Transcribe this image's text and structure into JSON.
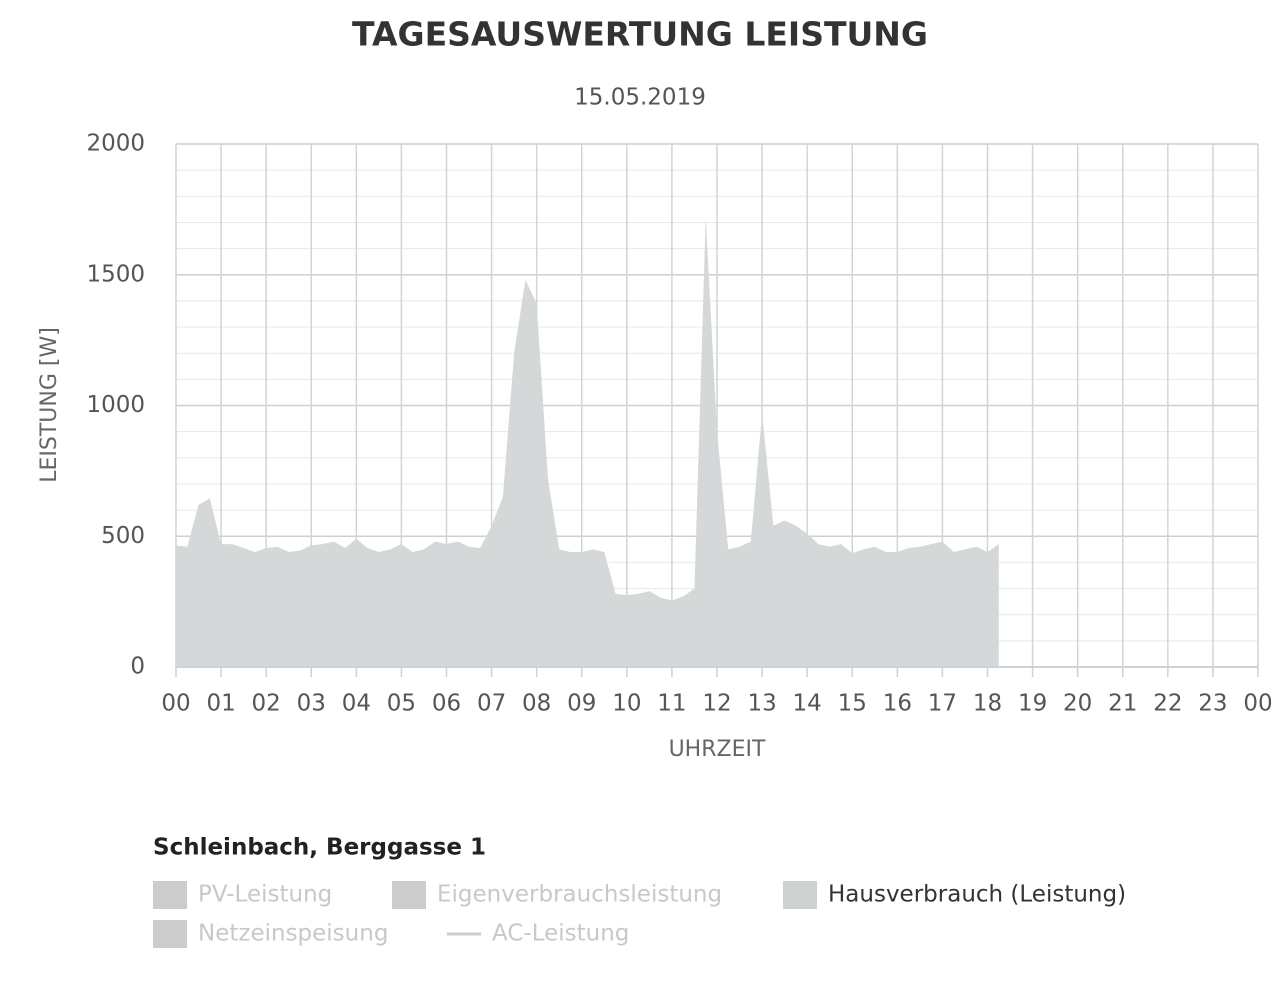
{
  "chart_data": {
    "type": "area",
    "title": "TAGESAUSWERTUNG LEISTUNG",
    "subtitle": "15.05.2019",
    "x_label": "UHRZEIT",
    "y_label": "LEISTUNG [W]",
    "legend_title": "Schleinbach, Berggasse 1",
    "x": [
      0,
      0.25,
      0.5,
      0.75,
      1,
      1.25,
      1.5,
      1.75,
      2,
      2.25,
      2.5,
      2.75,
      3,
      3.25,
      3.5,
      3.75,
      4,
      4.25,
      4.5,
      4.75,
      5,
      5.25,
      5.5,
      5.75,
      6,
      6.25,
      6.5,
      6.75,
      7,
      7.25,
      7.5,
      7.75,
      8,
      8.25,
      8.5,
      8.75,
      9,
      9.25,
      9.5,
      9.75,
      10,
      10.25,
      10.5,
      10.75,
      11,
      11.25,
      11.5,
      11.75,
      12,
      12.25,
      12.5,
      12.75,
      13,
      13.25,
      13.5,
      13.75,
      14,
      14.25,
      14.5,
      14.75,
      15,
      15.25,
      15.5,
      15.75,
      16,
      16.25,
      16.5,
      16.75,
      17,
      17.25,
      17.5,
      17.75,
      18,
      18.25
    ],
    "series": [
      {
        "name": "PV-Leistung",
        "color": "#cccccc",
        "symbol": "area",
        "visible": false
      },
      {
        "name": "Eigenverbrauchsleistung",
        "color": "#cccccc",
        "symbol": "area",
        "visible": false
      },
      {
        "name": "Hausverbrauch (Leistung)",
        "color": "#d5d8d9",
        "symbol": "area",
        "visible": true,
        "values": [
          465,
          460,
          620,
          645,
          470,
          470,
          455,
          440,
          455,
          460,
          440,
          445,
          465,
          470,
          480,
          455,
          490,
          455,
          440,
          450,
          470,
          440,
          450,
          480,
          470,
          480,
          460,
          455,
          540,
          650,
          1200,
          1480,
          1390,
          720,
          450,
          440,
          440,
          450,
          440,
          280,
          275,
          280,
          290,
          265,
          255,
          270,
          300,
          1720,
          900,
          450,
          460,
          480,
          970,
          540,
          560,
          540,
          510,
          470,
          460,
          470,
          435,
          450,
          460,
          440,
          440,
          455,
          460,
          470,
          480,
          440,
          450,
          460,
          440,
          470
        ]
      },
      {
        "name": "Netzeinspeisung",
        "color": "#cccccc",
        "symbol": "area",
        "visible": false
      },
      {
        "name": "AC-Leistung",
        "color": "#cccccc",
        "symbol": "line",
        "visible": false
      }
    ],
    "xlim": [
      0,
      24
    ],
    "xticks": [
      {
        "value": 0,
        "label": "00"
      },
      {
        "value": 1,
        "label": "01"
      },
      {
        "value": 2,
        "label": "02"
      },
      {
        "value": 3,
        "label": "03"
      },
      {
        "value": 4,
        "label": "04"
      },
      {
        "value": 5,
        "label": "05"
      },
      {
        "value": 6,
        "label": "06"
      },
      {
        "value": 7,
        "label": "07"
      },
      {
        "value": 8,
        "label": "08"
      },
      {
        "value": 9,
        "label": "09"
      },
      {
        "value": 10,
        "label": "10"
      },
      {
        "value": 11,
        "label": "11"
      },
      {
        "value": 12,
        "label": "12"
      },
      {
        "value": 13,
        "label": "13"
      },
      {
        "value": 14,
        "label": "14"
      },
      {
        "value": 15,
        "label": "15"
      },
      {
        "value": 16,
        "label": "16"
      },
      {
        "value": 17,
        "label": "17"
      },
      {
        "value": 18,
        "label": "18"
      },
      {
        "value": 19,
        "label": "19"
      },
      {
        "value": 20,
        "label": "20"
      },
      {
        "value": 21,
        "label": "21"
      },
      {
        "value": 22,
        "label": "22"
      },
      {
        "value": 23,
        "label": "23"
      },
      {
        "value": 24,
        "label": "00"
      }
    ],
    "ylim": [
      0,
      2000
    ],
    "yticks": [
      0,
      500,
      1000,
      1500,
      2000
    ],
    "yminor_ticks": [
      100,
      200,
      300,
      400,
      600,
      700,
      800,
      900,
      1100,
      1200,
      1300,
      1400,
      1600,
      1700,
      1800,
      1900
    ],
    "grid": true
  }
}
